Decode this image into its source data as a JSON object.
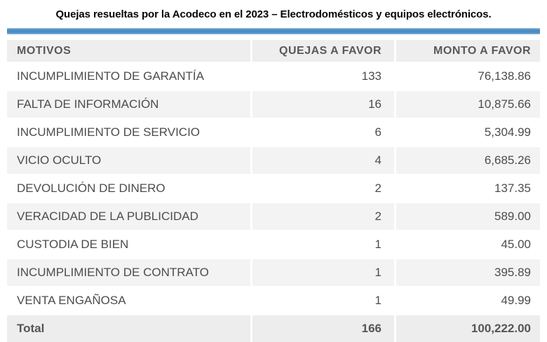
{
  "title": "Quejas resueltas por la Acodeco en el 2023 – Electrodomésticos y equipos electrónicos.",
  "accent_bar_color": "#4A8DC4",
  "table": {
    "columns": [
      "MOTIVOS",
      "QUEJAS A FAVOR",
      "MONTO A FAVOR"
    ],
    "rows": [
      {
        "motivo": "INCUMPLIMIENTO DE GARANTÍA",
        "quejas": "133",
        "monto": "76,138.86"
      },
      {
        "motivo": "FALTA DE INFORMACIÓN",
        "quejas": "16",
        "monto": "10,875.66"
      },
      {
        "motivo": "INCUMPLIMIENTO DE SERVICIO",
        "quejas": "6",
        "monto": "5,304.99"
      },
      {
        "motivo": "VICIO OCULTO",
        "quejas": "4",
        "monto": "6,685.26"
      },
      {
        "motivo": "DEVOLUCIÓN DE DINERO",
        "quejas": "2",
        "monto": "137.35"
      },
      {
        "motivo": "VERACIDAD DE LA PUBLICIDAD",
        "quejas": "2",
        "monto": "589.00"
      },
      {
        "motivo": "CUSTODIA DE BIEN",
        "quejas": "1",
        "monto": "45.00"
      },
      {
        "motivo": "INCUMPLIMIENTO DE CONTRATO",
        "quejas": "1",
        "monto": "395.89"
      },
      {
        "motivo": "VENTA ENGAÑOSA",
        "quejas": "1",
        "monto": "49.99"
      }
    ],
    "total": {
      "label": "Total",
      "quejas": "166",
      "monto": "100,222.00"
    }
  },
  "chart_data": {
    "type": "table",
    "title": "Quejas resueltas por la Acodeco en el 2023 – Electrodomésticos y equipos electrónicos.",
    "columns": [
      "MOTIVOS",
      "QUEJAS A FAVOR",
      "MONTO A FAVOR"
    ],
    "rows": [
      [
        "INCUMPLIMIENTO DE GARANTÍA",
        133,
        76138.86
      ],
      [
        "FALTA DE INFORMACIÓN",
        16,
        10875.66
      ],
      [
        "INCUMPLIMIENTO DE SERVICIO",
        6,
        5304.99
      ],
      [
        "VICIO OCULTO",
        4,
        6685.26
      ],
      [
        "DEVOLUCIÓN DE DINERO",
        2,
        137.35
      ],
      [
        "VERACIDAD DE LA PUBLICIDAD",
        2,
        589.0
      ],
      [
        "CUSTODIA DE BIEN",
        1,
        45.0
      ],
      [
        "INCUMPLIMIENTO DE CONTRATO",
        1,
        395.89
      ],
      [
        "VENTA ENGAÑOSA",
        1,
        49.99
      ]
    ],
    "total_row": [
      "Total",
      166,
      100222.0
    ],
    "layout": {
      "zebra_striping": true,
      "header_background": "#EEEEEE",
      "accent_bar": "#4A8DC4"
    }
  }
}
